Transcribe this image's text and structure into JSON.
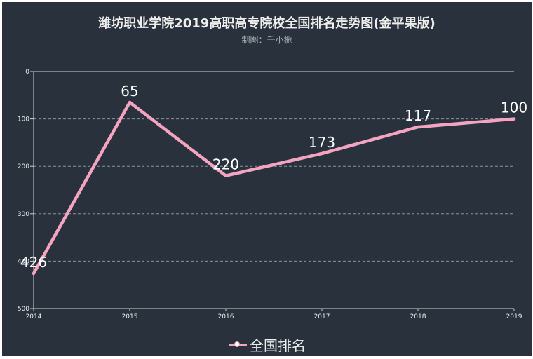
{
  "title": "潍坊职业学院2019高职高专院校全国排名走势图(金平果版)",
  "subtitle": "制图：千小栀",
  "chart_data": {
    "type": "line",
    "categories": [
      "2014",
      "2015",
      "2016",
      "2017",
      "2018",
      "2019"
    ],
    "series": [
      {
        "name": "全国排名",
        "values": [
          426,
          65,
          220,
          173,
          117,
          100
        ]
      }
    ],
    "y_ticks": [
      0,
      100,
      200,
      300,
      400,
      500
    ],
    "ylim": [
      0,
      500
    ],
    "y_inverted": true,
    "grid": "horizontal dashed",
    "legend_position": "bottom-center",
    "line_color": "#f4a4c0"
  }
}
